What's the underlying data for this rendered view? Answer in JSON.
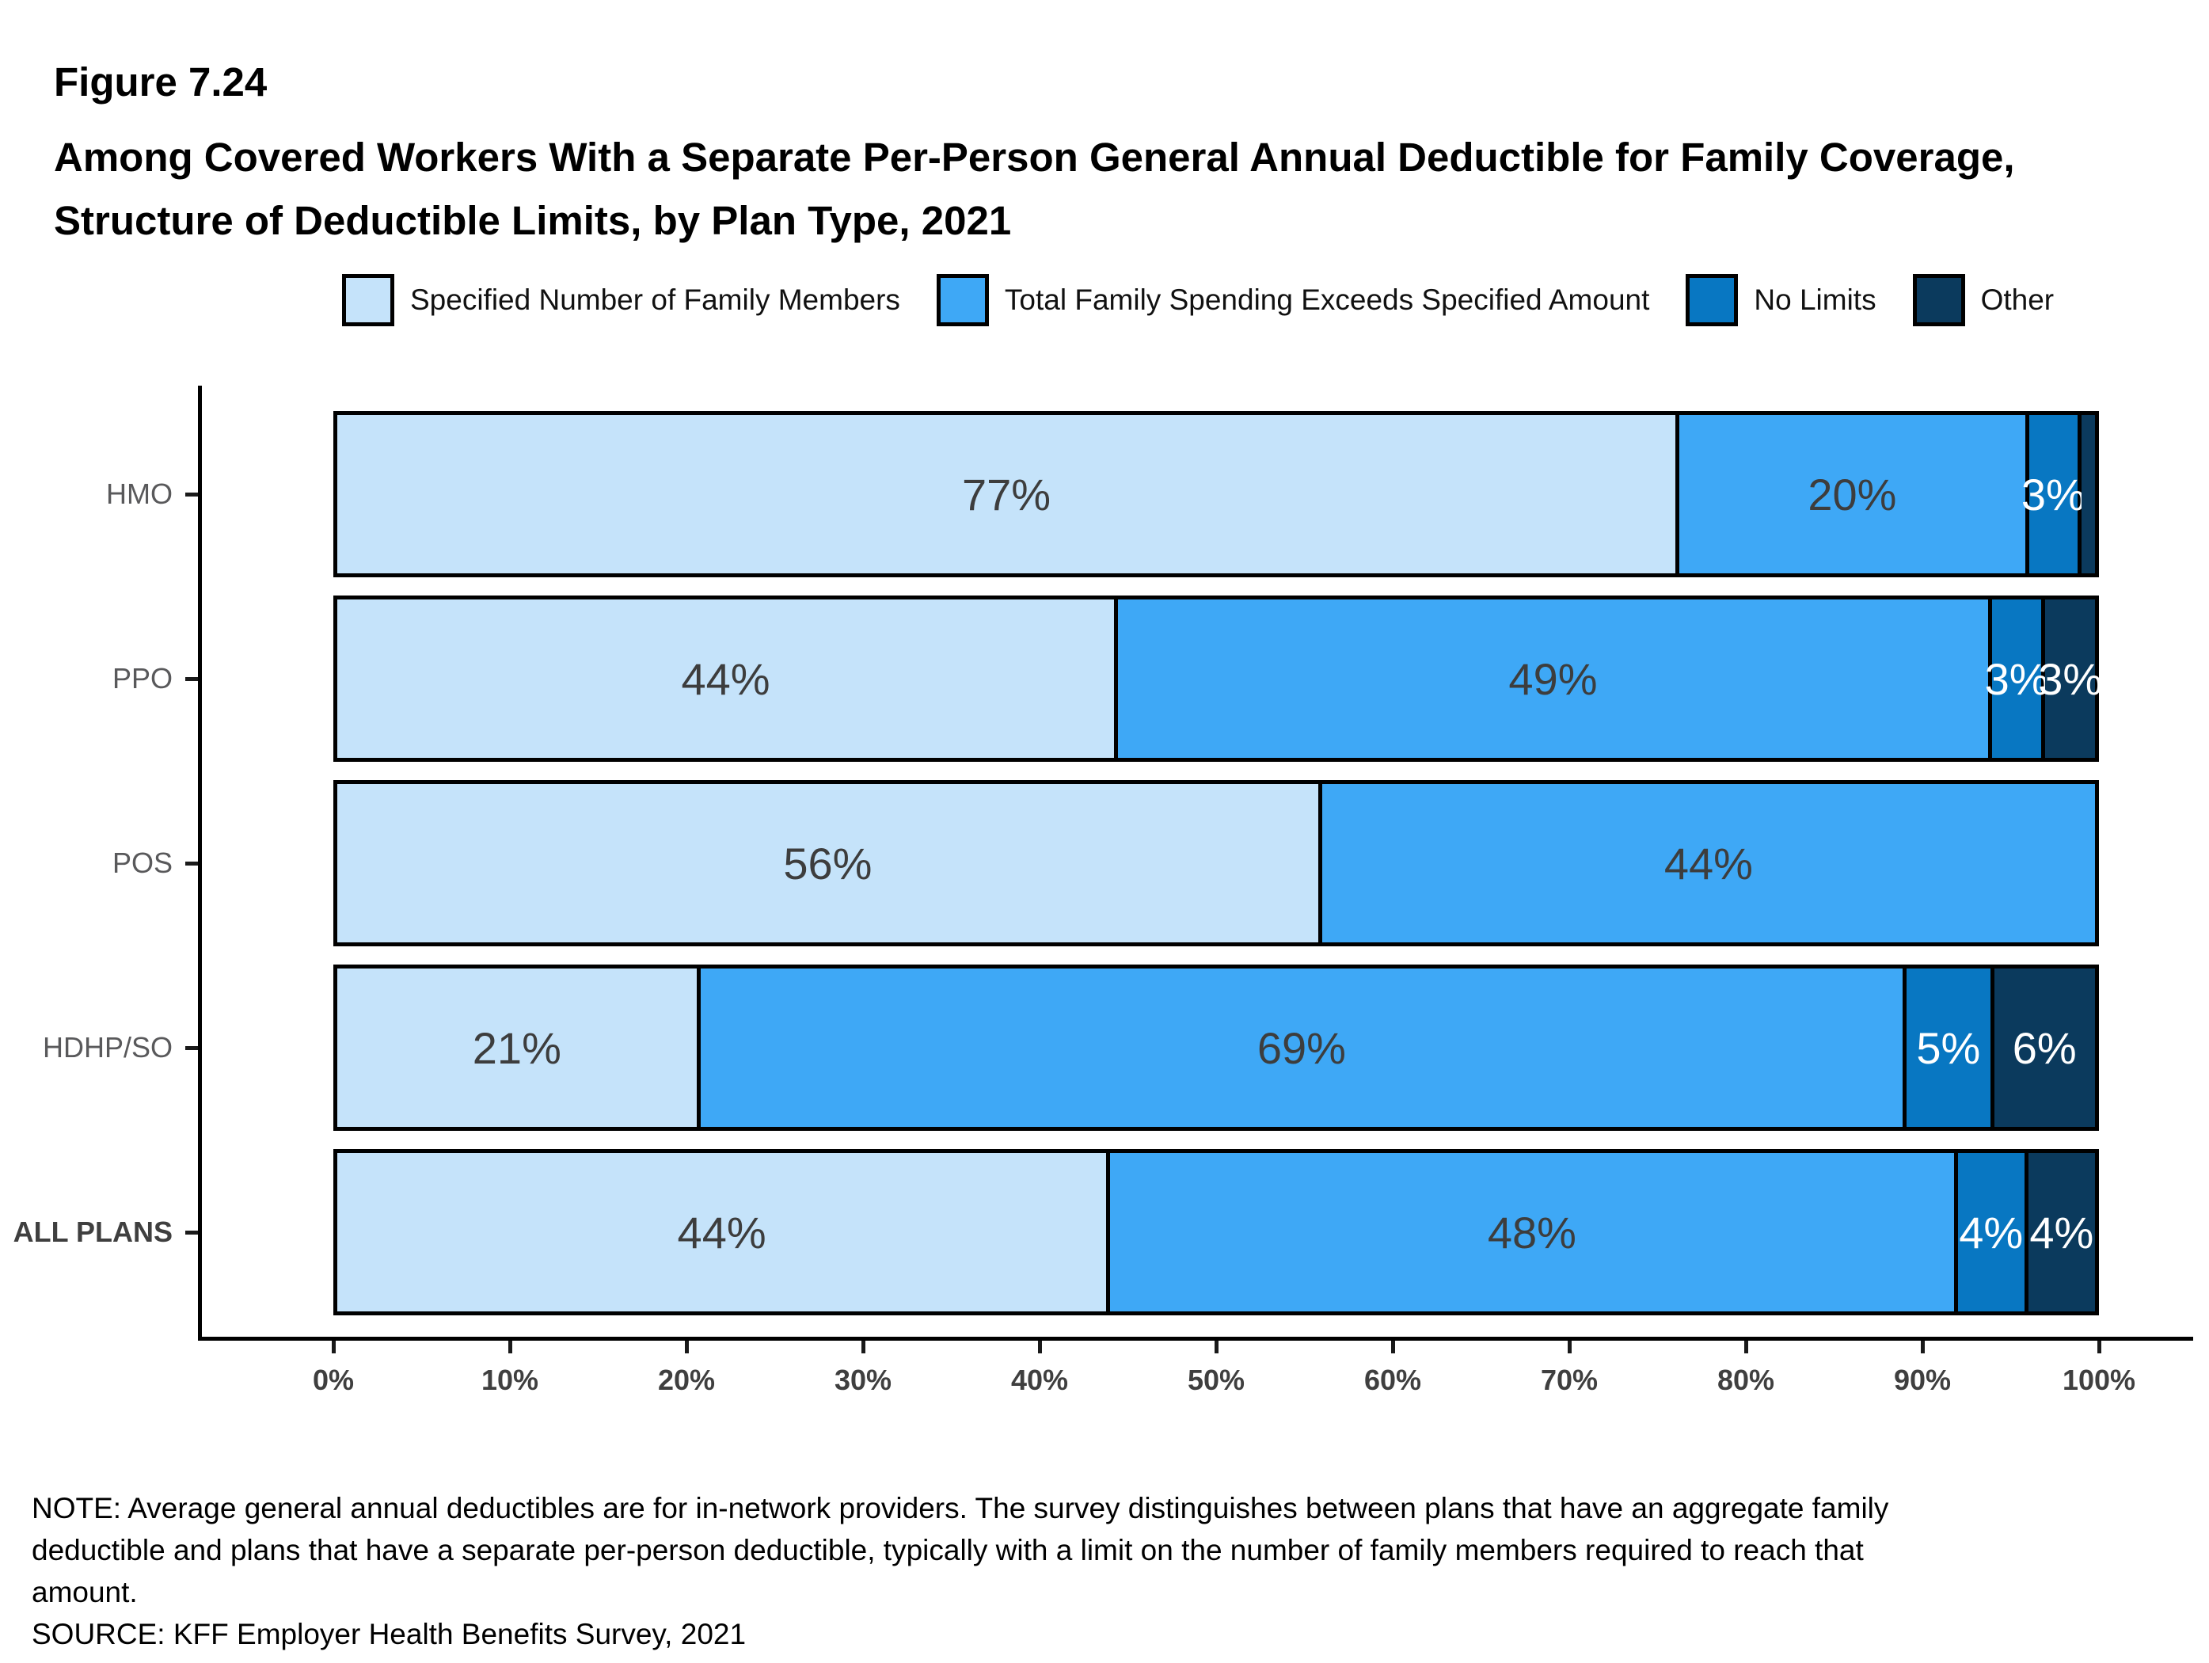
{
  "header": {
    "figure_label": "Figure 7.24",
    "title": "Among Covered Workers With a Separate Per-Person General Annual Deductible for Family Coverage, Structure of Deductible Limits, by Plan Type, 2021"
  },
  "chart_data": {
    "type": "bar",
    "orientation": "horizontal",
    "stacked": true,
    "title": "Among Covered Workers With a Separate Per-Person General Annual Deductible for Family Coverage, Structure of Deductible Limits, by Plan Type, 2021",
    "categories": [
      "HMO",
      "PPO",
      "POS",
      "HDHP/SO",
      "ALL PLANS"
    ],
    "emphasized_category": "ALL PLANS",
    "series": [
      {
        "name": "Specified Number of Family Members",
        "color": "#C5E3FA",
        "label_color": "#3D3D3D",
        "values": [
          77,
          44,
          56,
          21,
          44
        ]
      },
      {
        "name": "Total Family Spending Exceeds Specified Amount",
        "color": "#3EA8F6",
        "label_color": "#3D3D3D",
        "values": [
          20,
          49,
          44,
          69,
          48
        ]
      },
      {
        "name": "No Limits",
        "color": "#0877C2",
        "label_color": "#FFFFFF",
        "values": [
          3,
          3,
          0,
          5,
          4
        ]
      },
      {
        "name": "Other",
        "color": "#0B3A5D",
        "label_color": "#FFFFFF",
        "values": [
          1,
          3,
          0,
          6,
          4
        ]
      }
    ],
    "segment_labels": [
      [
        "77%",
        "20%",
        "3%",
        ""
      ],
      [
        "44%",
        "49%",
        "3%",
        "3%"
      ],
      [
        "56%",
        "44%",
        "",
        ""
      ],
      [
        "21%",
        "69%",
        "5%",
        "6%"
      ],
      [
        "44%",
        "48%",
        "4%",
        "4%"
      ]
    ],
    "x_ticks": [
      "0%",
      "10%",
      "20%",
      "30%",
      "40%",
      "50%",
      "60%",
      "70%",
      "80%",
      "90%",
      "100%"
    ],
    "xlim": [
      0,
      100
    ],
    "legend_position": "top",
    "grid": false
  },
  "notes": {
    "note": "NOTE: Average general annual deductibles are for in-network providers. The survey distinguishes between plans that have an aggregate family deductible and plans that have a separate per-person deductible, typically with a limit on the number of family members required to reach that amount.",
    "source": "SOURCE: KFF Employer Health Benefits Survey, 2021"
  }
}
